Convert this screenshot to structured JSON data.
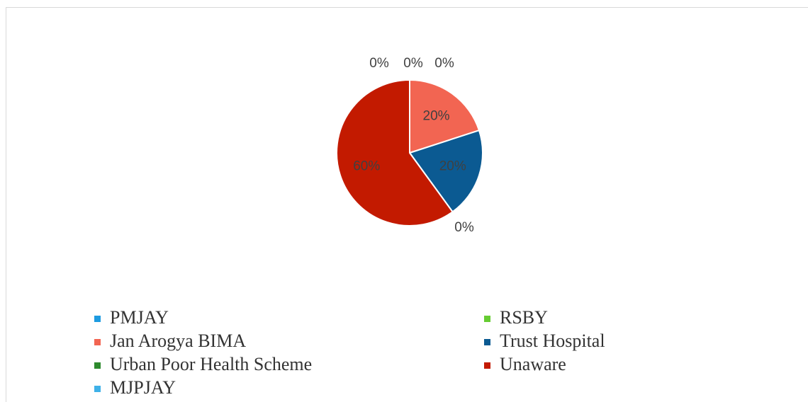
{
  "chart_data": {
    "type": "pie",
    "categories": [
      "PMJAY",
      "RSBY",
      "Jan Arogya BIMA",
      "Trust Hospital",
      "Urban Poor Health Scheme",
      "Unaware",
      "MJPJAY"
    ],
    "values": [
      0,
      0,
      20,
      20,
      0,
      60,
      0
    ],
    "value_labels": [
      "0%",
      "0%",
      "20%",
      "20%",
      "0%",
      "60%",
      "0%"
    ],
    "colors": [
      "#1e9be0",
      "#66cc33",
      "#f26552",
      "#0b5a92",
      "#2d8a2d",
      "#c31a00",
      "#3fb1e8"
    ]
  }
}
